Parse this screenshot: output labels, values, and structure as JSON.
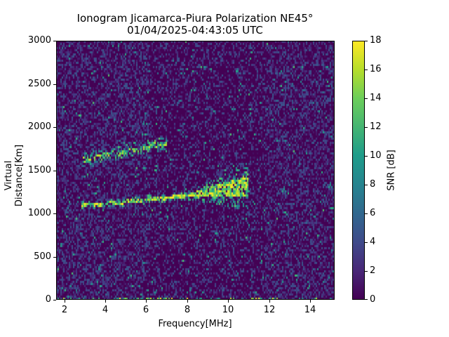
{
  "chart_data": {
    "type": "heatmap",
    "title": "Ionogram Jicamarca-Piura Polarization NE45°",
    "subtitle": "01/04/2025-04:43:05 UTC",
    "xlabel": "Frequency[MHz]",
    "ylabel": "Virtual Distance[Km]",
    "xlim": [
      1.6,
      15.2
    ],
    "ylim": [
      0,
      3000
    ],
    "xticks": [
      2,
      4,
      6,
      8,
      10,
      12,
      14
    ],
    "yticks": [
      0,
      500,
      1000,
      1500,
      2000,
      2500,
      3000
    ],
    "colorbar": {
      "label": "SNR [dB]",
      "range": [
        0,
        18
      ],
      "ticks": [
        0,
        2,
        4,
        6,
        8,
        10,
        12,
        14,
        16,
        18
      ],
      "colormap": "viridis"
    },
    "grid": false,
    "traces": [
      {
        "name": "primary echo trace",
        "points": [
          [
            2.8,
            1090
          ],
          [
            3.5,
            1100
          ],
          [
            4.5,
            1120
          ],
          [
            5.5,
            1150
          ],
          [
            6.5,
            1170
          ],
          [
            7.5,
            1190
          ],
          [
            8.5,
            1220
          ],
          [
            9.5,
            1260
          ],
          [
            10.5,
            1300
          ],
          [
            11.0,
            1330
          ]
        ],
        "snr_db": 18
      },
      {
        "name": "secondary echo trace",
        "points": [
          [
            2.9,
            1620
          ],
          [
            3.5,
            1650
          ],
          [
            4.5,
            1690
          ],
          [
            5.5,
            1750
          ],
          [
            7.0,
            1810
          ]
        ],
        "snr_db": 16
      }
    ],
    "background_snr_db": [
      0,
      4
    ]
  },
  "labels": {
    "title_line1": "Ionogram Jicamarca-Piura Polarization NE45°",
    "title_line2": "01/04/2025-04:43:05 UTC",
    "xlabel": "Frequency[MHz]",
    "ylabel": "Virtual Distance[Km]",
    "cbar_label": "SNR [dB]",
    "yticks": [
      "0",
      "500",
      "1000",
      "1500",
      "2000",
      "2500",
      "3000"
    ],
    "xticks": [
      "2",
      "4",
      "6",
      "8",
      "10",
      "12",
      "14"
    ],
    "cticks": [
      "0",
      "2",
      "4",
      "6",
      "8",
      "10",
      "12",
      "14",
      "16",
      "18"
    ]
  }
}
